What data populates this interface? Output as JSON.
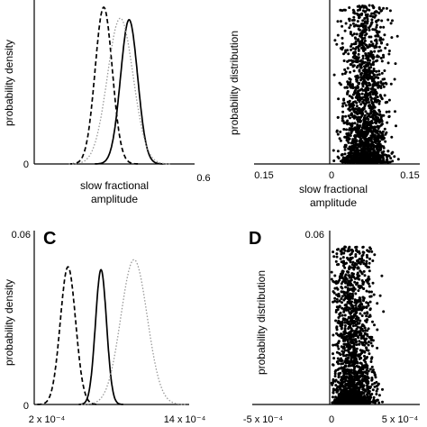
{
  "chart_data": [
    {
      "panel": "A",
      "panel_letter": "",
      "type": "line",
      "xlabel_lines": [
        "slow fractional",
        "amplitude"
      ],
      "ylabel": "probability density",
      "x_tick_labels": [
        "0.6"
      ],
      "y_tick_labels": [
        "0"
      ],
      "xlim": [
        0.0,
        0.6
      ],
      "grid": false,
      "legend": "none",
      "series": [
        {
          "style": "dashed",
          "color": "#000000",
          "shape": "gaussian",
          "mean": 0.26,
          "sd": 0.032,
          "peak": 1.0
        },
        {
          "style": "solid",
          "color": "#000000",
          "shape": "gaussian",
          "mean": 0.355,
          "sd": 0.032,
          "peak": 0.92
        },
        {
          "style": "dotted",
          "color": "#999999",
          "shape": "gaussian",
          "mean": 0.322,
          "sd": 0.048,
          "peak": 0.93
        }
      ]
    },
    {
      "panel": "B",
      "panel_letter": "",
      "type": "scatter",
      "xlabel_lines": [
        "slow fractional",
        "amplitude"
      ],
      "ylabel": "probability distribution",
      "x_tick_labels": [
        "0.15",
        "0",
        "0.15"
      ],
      "xlim": [
        -0.15,
        0.15
      ],
      "grid": false,
      "legend": "none",
      "points": {
        "count": 1800,
        "x_mean": 0.07,
        "x_sd": 0.022,
        "color": "#000000"
      }
    },
    {
      "panel": "C",
      "panel_letter": "C",
      "type": "line",
      "xlabel_lines": [],
      "ylabel": "probability density",
      "x_tick_labels": [
        "2 x 10⁻⁴",
        "14 x 10⁻⁴"
      ],
      "y_tick_labels": [
        "0.06",
        "0"
      ],
      "xlim": [
        0.0002,
        0.0014
      ],
      "ylim": [
        0,
        0.06
      ],
      "grid": false,
      "legend": "none",
      "series": [
        {
          "style": "dashed",
          "color": "#000000",
          "shape": "gaussian",
          "mean": 0.00051,
          "sd": 5.8e-05,
          "peak": 0.048
        },
        {
          "style": "solid",
          "color": "#000000",
          "shape": "gaussian",
          "mean": 0.00076,
          "sd": 4.2e-05,
          "peak": 0.047
        },
        {
          "style": "dotted",
          "color": "#999999",
          "shape": "gaussian",
          "mean": 0.00101,
          "sd": 0.0001,
          "peak": 0.0505
        }
      ]
    },
    {
      "panel": "D",
      "panel_letter": "D",
      "type": "scatter",
      "xlabel_lines": [],
      "ylabel": "probability distribution",
      "x_tick_labels": [
        "-5 x 10⁻⁴",
        "0",
        "5 x 10⁻⁴"
      ],
      "y_tick_labels": [
        "0.06"
      ],
      "xlim": [
        -0.0005,
        0.0005
      ],
      "ylim": [
        0,
        0.06
      ],
      "grid": false,
      "legend": "none",
      "points": {
        "count": 1800,
        "x_mean": 0.00016,
        "x_sd": 7.5e-05,
        "color": "#000000"
      }
    }
  ]
}
